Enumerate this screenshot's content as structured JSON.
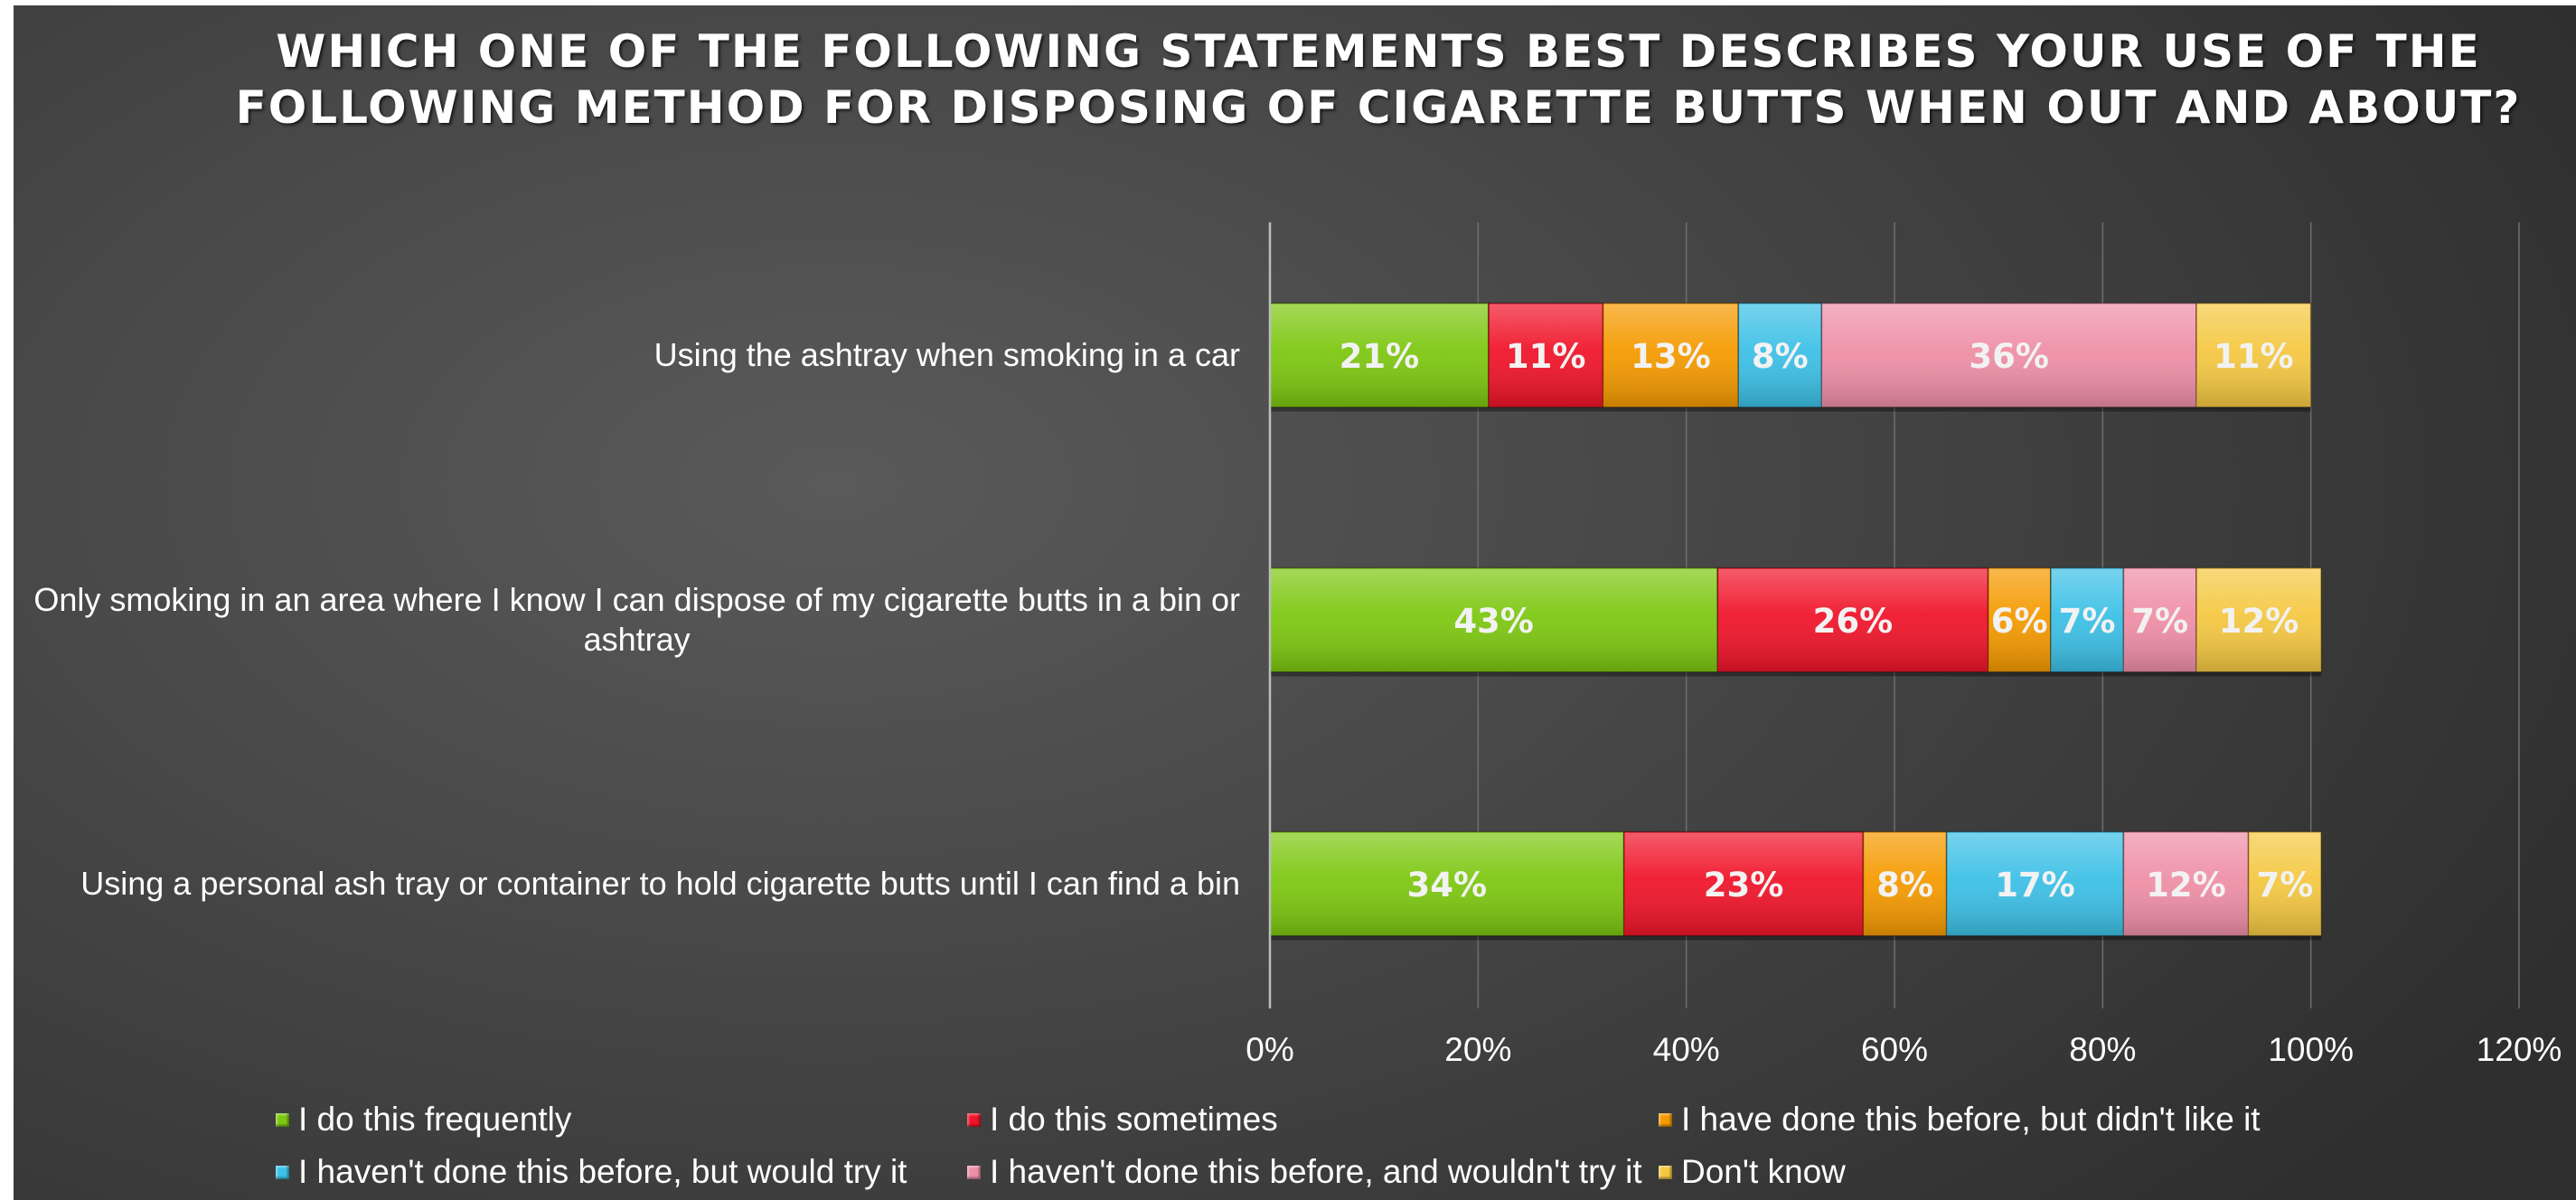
{
  "chart_data": {
    "type": "bar",
    "orientation": "horizontal",
    "stacked": true,
    "title": "Which one of the following statements best describes your use of the following method for disposing of cigarette butts when out and about?",
    "categories": [
      "Using the ashtray when smoking in a car",
      "Only smoking in an area where I know I can dispose of my cigarette butts in a bin or ashtray",
      "Using a personal ash tray or container to hold cigarette butts until I can find a bin"
    ],
    "series": [
      {
        "name": "I do this frequently",
        "color": "#7dc710",
        "values": [
          21,
          43,
          34
        ],
        "labels": [
          "21%",
          "43%",
          "34%"
        ]
      },
      {
        "name": "I do this sometimes",
        "color": "#f0142a",
        "values": [
          11,
          26,
          23
        ],
        "labels": [
          "11%",
          "26%",
          "23%"
        ]
      },
      {
        "name": "I have done this before, but didn't like it",
        "color": "#f59a00",
        "values": [
          13,
          6,
          8
        ],
        "labels": [
          "13%",
          "6%",
          "8%"
        ]
      },
      {
        "name": "I haven't done this before, but would try it",
        "color": "#3cc0e6",
        "values": [
          8,
          7,
          17
        ],
        "labels": [
          "8%",
          "7%",
          "17%"
        ]
      },
      {
        "name": "I haven't done this before, and wouldn't try it",
        "color": "#ef8fa6",
        "values": [
          36,
          7,
          12
        ],
        "labels": [
          "36%",
          "7%",
          "12%"
        ]
      },
      {
        "name": "Don't know",
        "color": "#f5c842",
        "values": [
          11,
          12,
          7
        ],
        "labels": [
          "11%",
          "12%",
          "7%"
        ]
      }
    ],
    "xlim": [
      0,
      120
    ],
    "xticks": [
      0,
      20,
      40,
      60,
      80,
      100,
      120
    ],
    "xtick_labels": [
      "0%",
      "20%",
      "40%",
      "60%",
      "80%",
      "100%",
      "120%"
    ],
    "grid": true,
    "legend_position": "bottom"
  }
}
